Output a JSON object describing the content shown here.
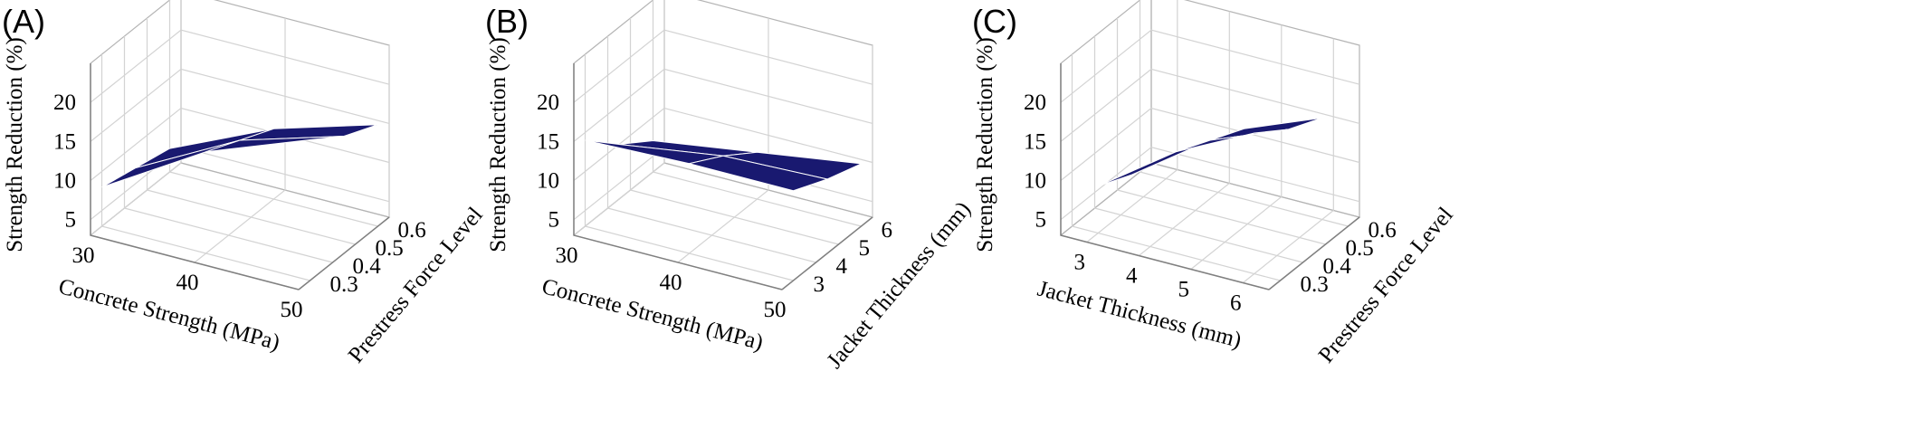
{
  "colors": {
    "surface": "#191970",
    "surface_grid": "#ffffff",
    "grid": "#d3d3d3",
    "frame": "#b4b4b4",
    "axis": "#808080"
  },
  "chart_data": [
    {
      "type": "surface3d",
      "panel_label": "(A)",
      "xlabel": "Concrete Strength (MPa)",
      "ylabel": "Prestress Force Level",
      "zlabel": "Strength Reduction (%)",
      "xticks": [
        "30",
        "40",
        "50"
      ],
      "yticks": [
        "0.3",
        "0.4",
        "0.5",
        "0.6"
      ],
      "zticks": [
        "5",
        "10",
        "15",
        "20"
      ],
      "xlim": [
        30,
        50
      ],
      "ylim": [
        0.25,
        0.65
      ],
      "zlim": [
        3,
        25
      ],
      "x": [
        30,
        40,
        50
      ],
      "y": [
        0.3,
        0.45,
        0.6
      ],
      "z": [
        [
          8,
          16,
          21
        ],
        [
          7,
          14,
          18
        ],
        [
          6,
          12,
          16
        ]
      ]
    },
    {
      "type": "surface3d",
      "panel_label": "(B)",
      "xlabel": "Concrete Strength (MPa)",
      "ylabel": "Jacket Thickness (mm)",
      "zlabel": "Strength Reduction (%)",
      "xticks": [
        "30",
        "40",
        "50"
      ],
      "yticks": [
        "3",
        "4",
        "5",
        "6"
      ],
      "zticks": [
        "5",
        "10",
        "15",
        "20"
      ],
      "xlim": [
        30,
        50
      ],
      "ylim": [
        2.5,
        6.5
      ],
      "zlim": [
        3,
        25
      ],
      "x": [
        30,
        40,
        50
      ],
      "y": [
        3,
        4.5,
        6
      ],
      "z": [
        [
          14,
          14.5,
          14.5
        ],
        [
          10,
          12,
          12.5
        ],
        [
          7,
          9,
          11
        ]
      ]
    },
    {
      "type": "surface3d",
      "panel_label": "(C)",
      "xlabel": "Jacket Thickness (mm)",
      "ylabel": "Prestress Force Level",
      "zlabel": "Strength Reduction (%)",
      "xticks": [
        "3",
        "4",
        "5",
        "6"
      ],
      "yticks": [
        "0.3",
        "0.4",
        "0.5",
        "0.6"
      ],
      "zticks": [
        "5",
        "10",
        "15",
        "20"
      ],
      "xlim": [
        2.5,
        6.5
      ],
      "ylim": [
        0.25,
        0.65
      ],
      "zlim": [
        3,
        25
      ],
      "x": [
        3,
        4.5,
        6
      ],
      "y": [
        0.3,
        0.45,
        0.6
      ],
      "z": [
        [
          9,
          16,
          21
        ],
        [
          7,
          14,
          18
        ],
        [
          6,
          12,
          16
        ]
      ]
    }
  ]
}
